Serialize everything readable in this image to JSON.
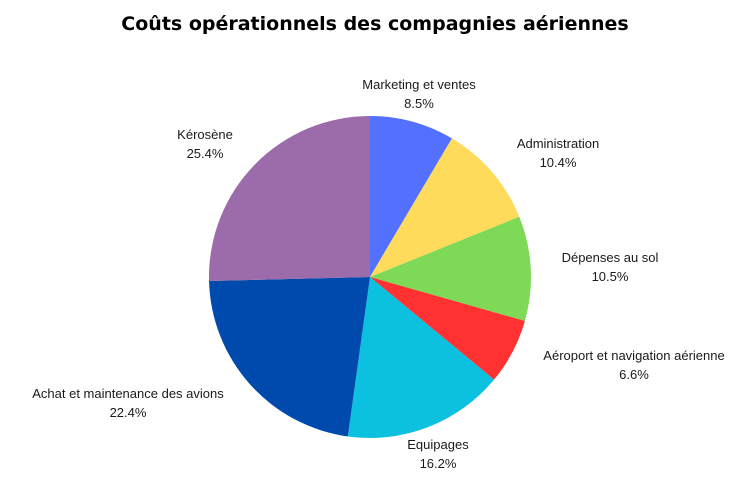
{
  "chart_data": {
    "type": "pie",
    "title": "Coûts opérationnels des compagnies aériennes",
    "start": "top",
    "direction": "clockwise",
    "slices": [
      {
        "label": "Marketing et ventes",
        "value": 8.5,
        "display": "8.5%",
        "color": "#5470FF"
      },
      {
        "label": "Administration",
        "value": 10.4,
        "display": "10.4%",
        "color": "#FFDB5C"
      },
      {
        "label": "Dépenses au sol",
        "value": 10.5,
        "display": "10.5%",
        "color": "#7ED957"
      },
      {
        "label": "Aéroport et navigation aérienne",
        "value": 6.6,
        "display": "6.6%",
        "color": "#FF3131"
      },
      {
        "label": "Equipages",
        "value": 16.2,
        "display": "16.2%",
        "color": "#0CC0DF"
      },
      {
        "label": "Achat et maintenance des avions",
        "value": 22.4,
        "display": "22.4%",
        "color": "#004AAD"
      },
      {
        "label": "Kérosène",
        "value": 25.4,
        "display": "25.4%",
        "color": "#9C6BAA"
      }
    ]
  }
}
